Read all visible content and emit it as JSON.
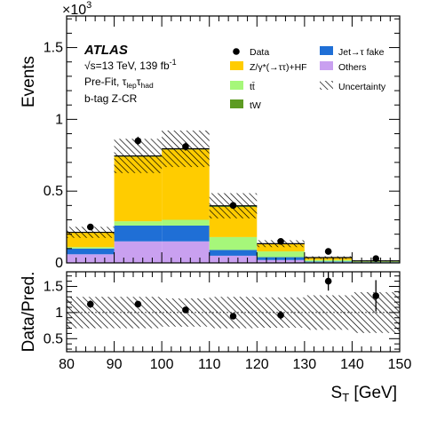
{
  "chart_data": {
    "type": "bar",
    "stacked": true,
    "x_edges": [
      80,
      90,
      100,
      110,
      120,
      130,
      140,
      150
    ],
    "xlim": [
      80,
      150
    ],
    "xlabel_main": "S",
    "xlabel_sub": "T",
    "xlabel_unit": " [GeV]",
    "x_ticks": [
      80,
      90,
      100,
      110,
      120,
      130,
      140,
      150
    ],
    "top_panel": {
      "ylabel": "Events",
      "y_multiplier": "×10",
      "y_multiplier_exp": "3",
      "ylim": [
        0,
        1.72
      ],
      "y_ticks": [
        0,
        0.5,
        1,
        1.5
      ],
      "y_tick_labels": [
        "0",
        "0.5",
        "1",
        "1.5"
      ],
      "series": [
        {
          "name": "Others",
          "color": "#c9a0f0",
          "values": [
            0.06,
            0.15,
            0.15,
            0.05,
            0.02,
            0.005,
            0.003
          ]
        },
        {
          "name": "Jet→τ fake",
          "color": "#1f6fd6",
          "values": [
            0.04,
            0.11,
            0.11,
            0.04,
            0.02,
            0.005,
            0.002
          ]
        },
        {
          "name": "tt̄",
          "color": "#a6f77a",
          "values": [
            0.01,
            0.03,
            0.04,
            0.09,
            0.04,
            0.01,
            0.005
          ]
        },
        {
          "name": "Z/γ*(→ττ)+HF",
          "color": "#ffcc00",
          "values": [
            0.1,
            0.45,
            0.49,
            0.21,
            0.05,
            0.015,
            0.003
          ]
        },
        {
          "name": "tW",
          "color": "#5d9b23",
          "values": [
            0.003,
            0.005,
            0.005,
            0.008,
            0.004,
            0.002,
            0.001
          ]
        }
      ],
      "uncertainty_rel": [
        0.18,
        0.16,
        0.16,
        0.22,
        0.18,
        0.25,
        0.28
      ],
      "data": {
        "x": [
          85,
          95,
          105,
          115,
          125,
          135,
          145
        ],
        "y": [
          0.25,
          0.85,
          0.81,
          0.4,
          0.15,
          0.08,
          0.03
        ],
        "yerr": [
          0.016,
          0.029,
          0.028,
          0.02,
          0.012,
          0.009,
          0.006
        ]
      }
    },
    "ratio_panel": {
      "ylabel": "Data/Pred.",
      "ylim": [
        0.25,
        1.78
      ],
      "y_ticks": [
        0.5,
        1,
        1.5
      ],
      "y_tick_labels": [
        "0.5",
        "1",
        "1.5"
      ],
      "points": {
        "x": [
          85,
          95,
          105,
          115,
          125,
          135,
          145
        ],
        "y": [
          1.16,
          1.16,
          1.05,
          0.93,
          0.95,
          1.6,
          1.32
        ],
        "yerr": [
          0.07,
          0.04,
          0.04,
          0.05,
          0.08,
          0.18,
          0.3
        ]
      },
      "band_rel": [
        0.3,
        0.3,
        0.27,
        0.3,
        0.29,
        0.33,
        0.39
      ]
    }
  },
  "annotations": {
    "atlas": "ATLAS",
    "line1_prefix": "√s=13 TeV, 139 fb",
    "line1_sup": "-1",
    "line2_prefix": "Pre-Fit, τ",
    "line2_sub1": "lep",
    "line2_mid": "τ",
    "line2_sub2": "had",
    "line3": "b-tag Z-CR"
  },
  "legend": {
    "data_label": "Data",
    "jet_fake_label": "Jet→τ fake",
    "ztautau_label": "Z/γ*(→ττ)+HF",
    "others_label": "Others",
    "ttbar_label": "tt̄",
    "uncertainty_label": "Uncertainty",
    "tw_label": "tW"
  }
}
